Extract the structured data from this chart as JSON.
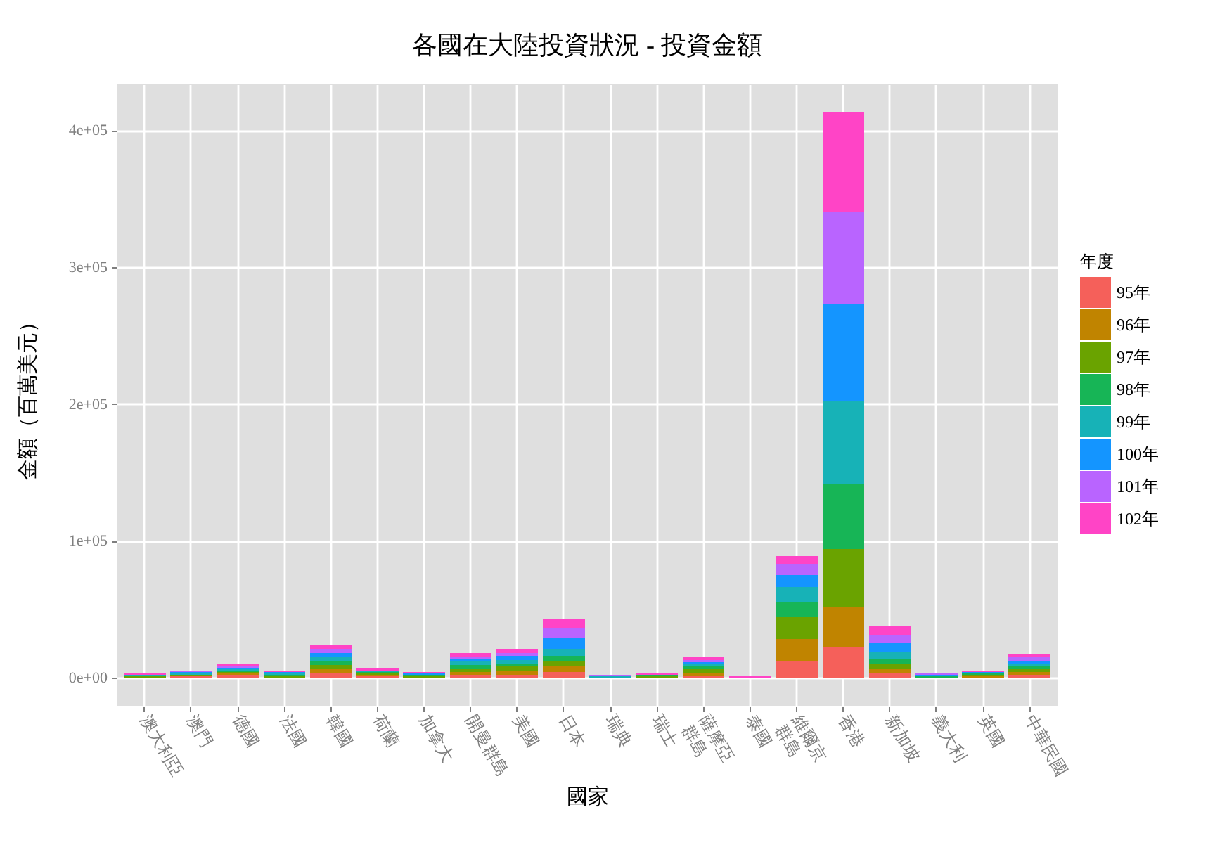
{
  "chart_data": {
    "type": "bar",
    "title": "各國在大陸投資狀況 - 投資金額",
    "xlabel": "國家",
    "ylabel": "金額（百萬美元）",
    "legend_title": "年度",
    "categories": [
      "澳大利亞",
      "澳門",
      "德國",
      "法國",
      "韓國",
      "荷蘭",
      "加拿大",
      "開曼群島",
      "美國",
      "日本",
      "瑞典",
      "瑞士",
      "薩摩亞\n群島",
      "泰國",
      "維爾京\n群島",
      "香港",
      "新加坡",
      "義大利",
      "英國",
      "中華民國"
    ],
    "series": [
      {
        "name": "95年",
        "color": "#f5605a",
        "values": [
          null,
          1000,
          2000,
          null,
          3000,
          1000,
          null,
          2000,
          2000,
          4000,
          null,
          null,
          1000,
          null,
          12000,
          22000,
          3000,
          null,
          null,
          2000
        ]
      },
      {
        "name": "96年",
        "color": "#c08400",
        "values": [
          null,
          null,
          1000,
          null,
          3000,
          1000,
          null,
          2000,
          3000,
          4000,
          null,
          null,
          2000,
          null,
          16000,
          30000,
          3000,
          null,
          1000,
          2000
        ]
      },
      {
        "name": "97年",
        "color": "#6aa300",
        "values": [
          1000,
          1000,
          1000,
          1000,
          3000,
          1000,
          1000,
          2000,
          3000,
          4000,
          null,
          1000,
          3000,
          null,
          16000,
          42000,
          4000,
          null,
          1000,
          2000
        ]
      },
      {
        "name": "98年",
        "color": "#17b556",
        "values": [
          null,
          null,
          1000,
          1000,
          3000,
          1000,
          1000,
          3000,
          2000,
          4000,
          null,
          1000,
          2000,
          null,
          11000,
          47000,
          4000,
          1000,
          1000,
          2000
        ]
      },
      {
        "name": "99年",
        "color": "#17b2b7",
        "values": [
          1000,
          1000,
          1000,
          1000,
          3000,
          1000,
          null,
          3000,
          3000,
          5000,
          1000,
          null,
          2000,
          null,
          11000,
          61000,
          5000,
          null,
          null,
          2000
        ]
      },
      {
        "name": "100年",
        "color": "#1495ff",
        "values": [
          null,
          1000,
          1000,
          1000,
          3000,
          null,
          1000,
          2000,
          3000,
          8000,
          null,
          null,
          1000,
          null,
          9000,
          71000,
          6000,
          1000,
          1000,
          2000
        ]
      },
      {
        "name": "101年",
        "color": "#b964ff",
        "values": [
          null,
          1000,
          1000,
          null,
          3000,
          null,
          null,
          1000,
          2000,
          7000,
          1000,
          null,
          2000,
          null,
          8000,
          67000,
          6000,
          1000,
          null,
          3000
        ]
      },
      {
        "name": "102年",
        "color": "#ff44c6",
        "values": [
          1000,
          null,
          2000,
          1000,
          3000,
          2000,
          1000,
          3000,
          3000,
          7000,
          null,
          1000,
          2000,
          1000,
          6000,
          73000,
          7000,
          null,
          1000,
          2000
        ]
      }
    ],
    "stacked": true,
    "ylim": [
      -20650,
      433650
    ],
    "yticks": [
      {
        "value": 0,
        "label": "0e+00"
      },
      {
        "value": 100000,
        "label": "1e+05"
      },
      {
        "value": 200000,
        "label": "2e+05"
      },
      {
        "value": 300000,
        "label": "3e+05"
      },
      {
        "value": 400000,
        "label": "4e+05"
      }
    ],
    "grid": true,
    "legend": "right"
  }
}
